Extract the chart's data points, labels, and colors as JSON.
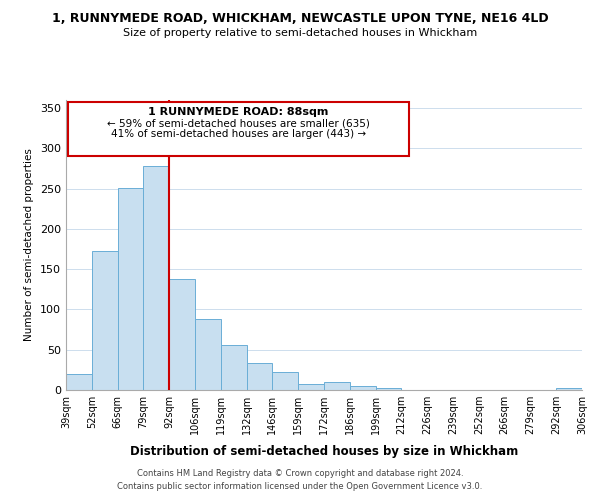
{
  "title1": "1, RUNNYMEDE ROAD, WHICKHAM, NEWCASTLE UPON TYNE, NE16 4LD",
  "title2": "Size of property relative to semi-detached houses in Whickham",
  "xlabel": "Distribution of semi-detached houses by size in Whickham",
  "ylabel": "Number of semi-detached properties",
  "bin_labels": [
    "39sqm",
    "52sqm",
    "66sqm",
    "79sqm",
    "92sqm",
    "106sqm",
    "119sqm",
    "132sqm",
    "146sqm",
    "159sqm",
    "172sqm",
    "186sqm",
    "199sqm",
    "212sqm",
    "226sqm",
    "239sqm",
    "252sqm",
    "266sqm",
    "279sqm",
    "292sqm",
    "306sqm"
  ],
  "bar_values": [
    20,
    172,
    251,
    278,
    138,
    88,
    56,
    34,
    22,
    8,
    10,
    5,
    2,
    0,
    0,
    0,
    0,
    0,
    0,
    2
  ],
  "bar_color": "#c8dff0",
  "bar_edge_color": "#6aaed6",
  "property_line_x": 4,
  "property_line_color": "#cc0000",
  "annotation_title": "1 RUNNYMEDE ROAD: 88sqm",
  "annotation_line1": "← 59% of semi-detached houses are smaller (635)",
  "annotation_line2": "41% of semi-detached houses are larger (443) →",
  "annotation_box_color": "#cc0000",
  "ylim": [
    0,
    360
  ],
  "yticks": [
    0,
    50,
    100,
    150,
    200,
    250,
    300,
    350
  ],
  "footer1": "Contains HM Land Registry data © Crown copyright and database right 2024.",
  "footer2": "Contains public sector information licensed under the Open Government Licence v3.0."
}
